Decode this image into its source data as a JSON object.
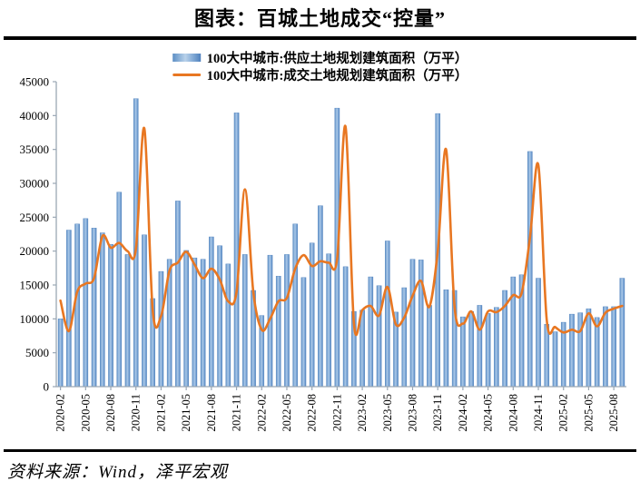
{
  "title": "图表：百城土地成交“控量”",
  "source": "资料来源：Wind，泽平宏观",
  "chart_data": {
    "type": "bar",
    "title": "图表：百城土地成交“控量”",
    "x": [
      "2020-02",
      "2020-03",
      "2020-04",
      "2020-05",
      "2020-06",
      "2020-07",
      "2020-08",
      "2020-09",
      "2020-10",
      "2020-11",
      "2020-12",
      "2021-01",
      "2021-02",
      "2021-03",
      "2021-04",
      "2021-05",
      "2021-06",
      "2021-07",
      "2021-08",
      "2021-09",
      "2021-10",
      "2021-11",
      "2021-12",
      "2022-01",
      "2022-02",
      "2022-03",
      "2022-04",
      "2022-05",
      "2022-06",
      "2022-07",
      "2022-08",
      "2022-09",
      "2022-10",
      "2022-11",
      "2022-12",
      "2023-01",
      "2023-02",
      "2023-03",
      "2023-04",
      "2023-05",
      "2023-06",
      "2023-07",
      "2023-08",
      "2023-09",
      "2023-10",
      "2023-11",
      "2023-12",
      "2024-01",
      "2024-02",
      "2024-03",
      "2024-04",
      "2024-05",
      "2024-06",
      "2024-07",
      "2024-08",
      "2024-09",
      "2024-10",
      "2024-11",
      "2024-12",
      "2025-01",
      "2025-02",
      "2025-03",
      "2025-04",
      "2025-05",
      "2025-06",
      "2025-07",
      "2025-08",
      "2025-09"
    ],
    "series": [
      {
        "name": "100大中城市:供应土地规划建筑面积（万平）",
        "type": "bar",
        "color": "#6b9bd2",
        "values": [
          10000,
          23100,
          24000,
          24800,
          23400,
          22700,
          21000,
          28700,
          19500,
          42500,
          22400,
          13000,
          17000,
          18800,
          27400,
          20100,
          19000,
          18800,
          22100,
          20800,
          18100,
          40400,
          19500,
          14200,
          10500,
          19400,
          16300,
          19500,
          24000,
          16100,
          21200,
          26700,
          19600,
          41100,
          17700,
          11100,
          11300,
          16200,
          14900,
          21500,
          11000,
          14600,
          18800,
          18700,
          12000,
          40300,
          14300,
          14200,
          10300,
          11100,
          12000,
          10800,
          11700,
          14200,
          16200,
          16500,
          34700,
          16000,
          9200,
          8100,
          9500,
          10700,
          10900,
          11500,
          10200,
          11800,
          11800,
          16000
        ]
      },
      {
        "name": "100大中城市:成交土地规划建筑面积（万平）",
        "type": "line",
        "color": "#e87722",
        "values": [
          12700,
          8200,
          14000,
          15200,
          16000,
          22200,
          20500,
          21200,
          20000,
          20300,
          38100,
          11300,
          10400,
          17100,
          18300,
          19900,
          18000,
          16000,
          17400,
          15800,
          12600,
          14000,
          29100,
          14000,
          8400,
          10000,
          12600,
          13100,
          17400,
          19400,
          17800,
          18500,
          18300,
          18900,
          38400,
          9300,
          11300,
          11900,
          10500,
          14700,
          9200,
          10200,
          13400,
          15600,
          11800,
          20000,
          35000,
          11800,
          9300,
          11100,
          8400,
          11100,
          11000,
          11900,
          13500,
          13800,
          22000,
          32700,
          9800,
          8800,
          8000,
          8400,
          8200,
          10800,
          8900,
          10900,
          11500,
          11900
        ]
      }
    ],
    "ylim": [
      0,
      45000
    ],
    "y_tick_labels": [
      "0",
      "5000",
      "10000",
      "15000",
      "20000",
      "25000",
      "30000",
      "35000",
      "40000",
      "45000"
    ],
    "x_tick_labels": [
      "2020-02",
      "2020-05",
      "2020-08",
      "2020-11",
      "2021-02",
      "2021-05",
      "2021-08",
      "2021-11",
      "2022-02",
      "2022-05",
      "2022-08",
      "2022-11",
      "2023-02",
      "2023-05",
      "2023-08",
      "2023-11",
      "2024-02",
      "2024-05",
      "2024-08",
      "2024-11",
      "2025-02",
      "2025-05",
      "2025-08"
    ],
    "grid": false,
    "legend_position": "top-center"
  }
}
